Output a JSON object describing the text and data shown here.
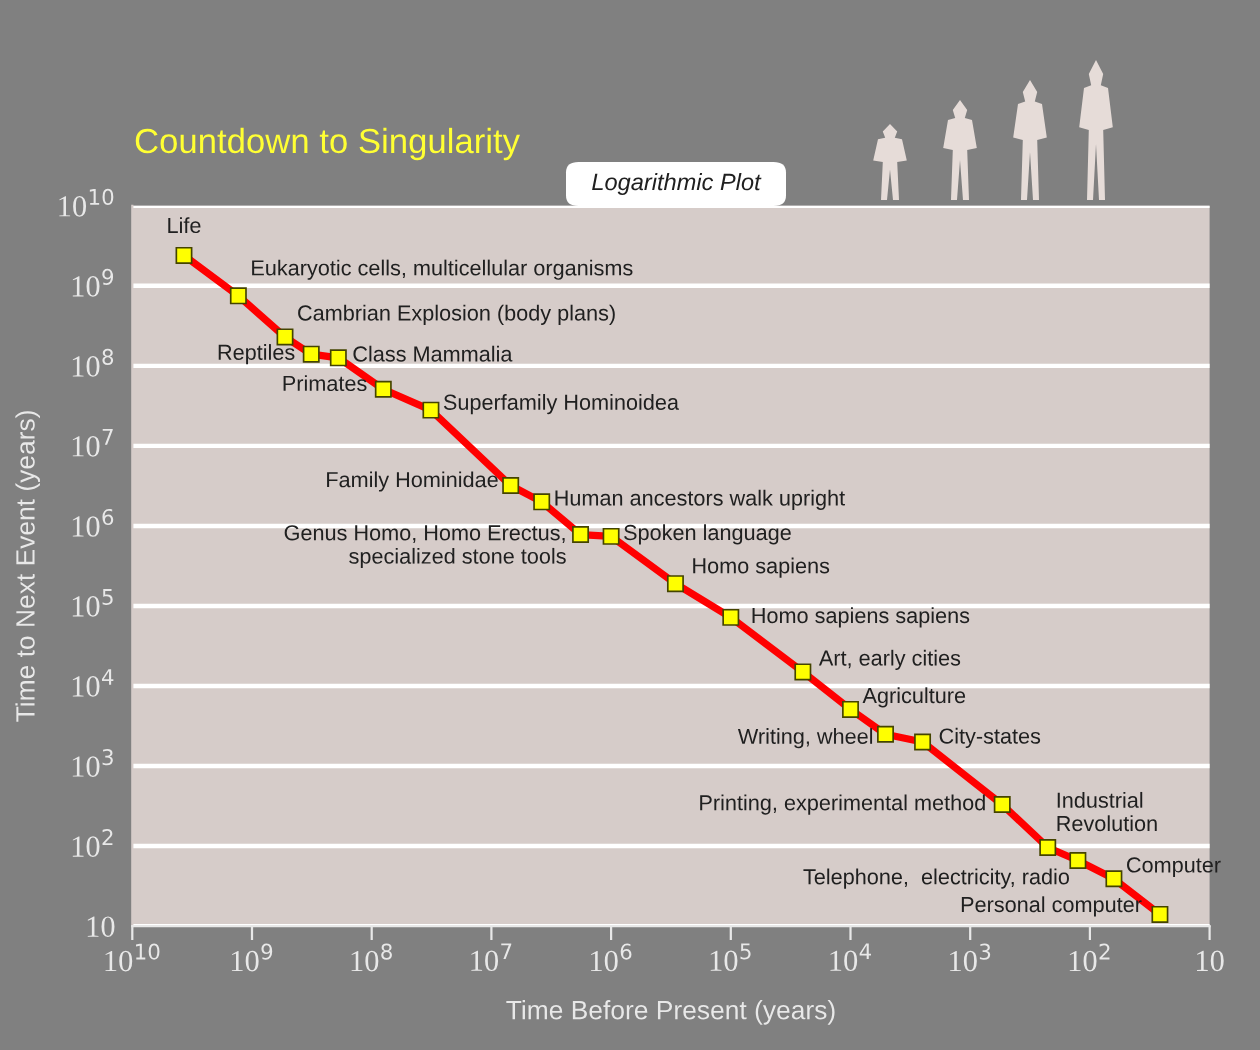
{
  "chart_data": {
    "type": "line",
    "title": "Countdown to Singularity",
    "subtitle": "Logarithmic Plot",
    "xlabel": "Time Before Present (years)",
    "ylabel": "Time to Next Event (years)",
    "log": "xy",
    "grid": "y",
    "marker": "square",
    "line_style": "solid",
    "xlim": [
      10000000000.0,
      10
    ],
    "ylim": [
      10,
      10000000000.0
    ],
    "xticks": [
      {
        "value": 10000000000.0,
        "label": "10$^{10}$"
      },
      {
        "value": 1000000000.0,
        "label": "10$^{9}$"
      },
      {
        "value": 100000000.0,
        "label": "10$^{8}$"
      },
      {
        "value": 10000000.0,
        "label": "10$^{7}$"
      },
      {
        "value": 1000000.0,
        "label": "10$^{6}$"
      },
      {
        "value": 100000.0,
        "label": "10$^{5}$"
      },
      {
        "value": 10000.0,
        "label": "10$^{4}$"
      },
      {
        "value": 1000.0,
        "label": "10$^{3}$"
      },
      {
        "value": 100.0,
        "label": "10$^{2}$"
      },
      10
    ],
    "yticks": [
      10,
      {
        "value": 100.0,
        "label": "10$^{2}$"
      },
      {
        "value": 1000.0,
        "label": "10$^{3}$"
      },
      {
        "value": 10000.0,
        "label": "10$^{4}$"
      },
      {
        "value": 100000.0,
        "label": "10$^{5}$"
      },
      {
        "value": 1000000.0,
        "label": "10$^{6}$"
      },
      {
        "value": 10000000.0,
        "label": "10$^{7}$"
      },
      {
        "value": 100000000.0,
        "label": "10$^{8}$"
      },
      {
        "value": 1000000000.0,
        "label": "10$^{9}$"
      },
      {
        "value": 10000000000.0,
        "label": "10$^{10}$"
      }
    ],
    "series": [
      {
        "color": "#ff0000",
        "x": [
          3700000000.0,
          1300000000.0,
          530000000.0,
          320000000.0,
          190000000.0,
          80000000.0,
          32000000.0,
          6900000.0,
          3800000.0,
          1800000.0,
          1000000.0,
          290000.0,
          100000.0,
          25000.0,
          10000.0,
          5100.0,
          2500.0,
          540,
          225,
          126,
          63,
          26
        ],
        "values": [
          2400000000.0,
          750000000.0,
          230000000.0,
          140000000.0,
          126000000.0,
          51000000.0,
          28000000.0,
          3200000.0,
          2000000.0,
          780000.0,
          740000.0,
          190000.0,
          72000.0,
          15000.0,
          5100.0,
          2500.0,
          2000.0,
          330,
          96,
          66,
          39,
          14
        ]
      }
    ],
    "annotations": [
      {
        "text": "Life",
        "x": 3700000000.0,
        "y": 2400000000.0
      },
      {
        "text": "Eukaryotic cells, multicellular organisms",
        "x": 1300000000.0,
        "y": 750000000.0
      },
      {
        "text": "Cambrian Explosion (body plans)",
        "x": 530000000.0,
        "y": 230000000.0
      },
      {
        "text": "Reptiles",
        "x": 320000000.0,
        "y": 140000000.0
      },
      {
        "text": "Class Mammalia",
        "x": 190000000.0,
        "y": 126000000.0
      },
      {
        "text": "Primates",
        "x": 80000000.0,
        "y": 51000000.0
      },
      {
        "text": "Superfamily Hominoidea",
        "x": 32000000.0,
        "y": 28000000.0
      },
      {
        "text": "Family Hominidae",
        "x": 6900000.0,
        "y": 3200000.0
      },
      {
        "text": "Human ancestors walk upright",
        "x": 3800000.0,
        "y": 2000000.0
      },
      {
        "text": "Genus Homo, Homo Erectus,\nspecialized stone tools",
        "x": 1800000.0,
        "y": 780000.0
      },
      {
        "text": "Spoken language",
        "x": 1000000.0,
        "y": 740000.0
      },
      {
        "text": "Homo sapiens",
        "x": 290000.0,
        "y": 190000.0
      },
      {
        "text": "Homo sapiens sapiens",
        "x": 100000.0,
        "y": 72000.0
      },
      {
        "text": "Art, early cities",
        "x": 25000.0,
        "y": 15000.0
      },
      {
        "text": "Agriculture",
        "x": 10000.0,
        "y": 5100.0
      },
      {
        "text": "Writing, wheel",
        "x": 5100.0,
        "y": 2500.0
      },
      {
        "text": "City-states",
        "x": 2500.0,
        "y": 2000.0
      },
      {
        "text": "Printing, experimental method",
        "x": 540,
        "y": 330
      },
      {
        "text": "Industrial\nRevolution",
        "x": 225,
        "y": 96
      },
      {
        "text": "Telephone,  electricity, radio",
        "x": 126,
        "y": 66
      },
      {
        "text": "Computer",
        "x": 63,
        "y": 39
      },
      {
        "text": "Personal computer",
        "x": 26,
        "y": 14
      }
    ]
  }
}
